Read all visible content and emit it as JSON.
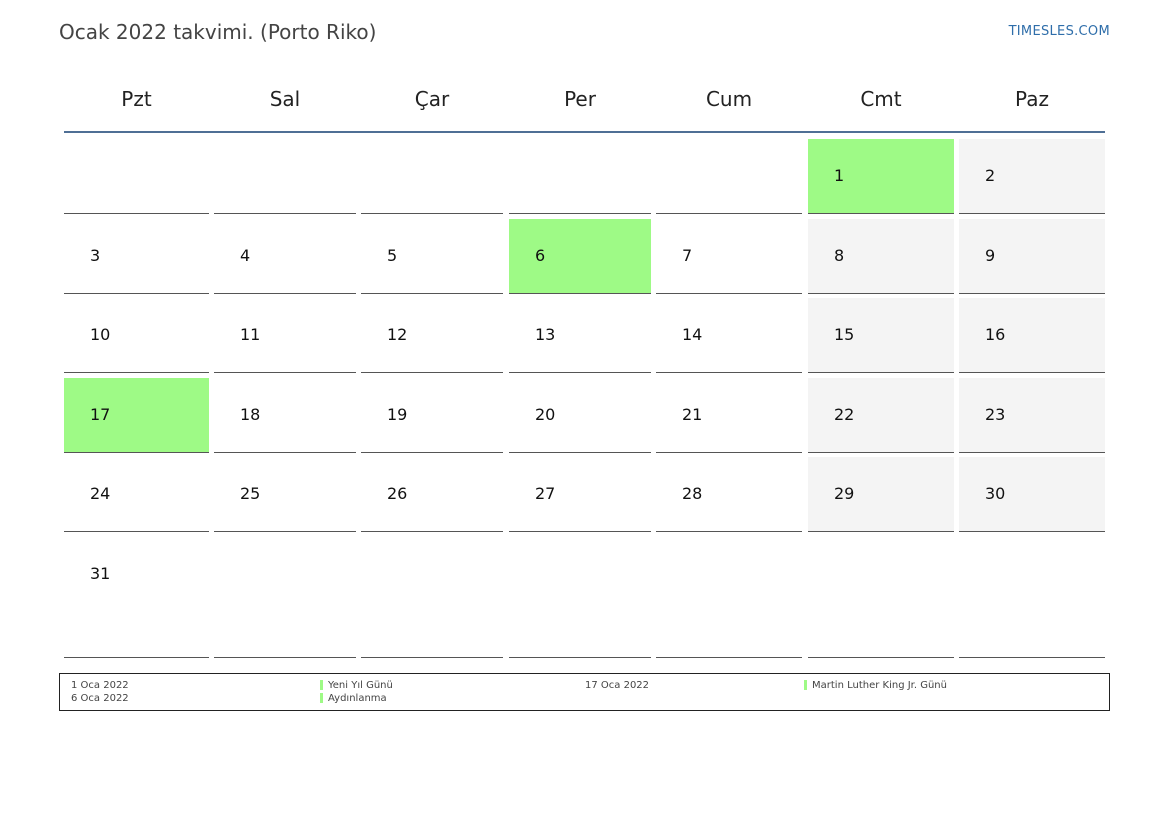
{
  "header": {
    "title": "Ocak 2022 takvimi. (Porto Riko)",
    "site": "TIMESLES.COM"
  },
  "weekdays": [
    "Pzt",
    "Sal",
    "Çar",
    "Per",
    "Cum",
    "Cmt",
    "Paz"
  ],
  "weeks": [
    [
      "",
      "",
      "",
      "",
      "",
      "1",
      "2"
    ],
    [
      "3",
      "4",
      "5",
      "6",
      "7",
      "8",
      "9"
    ],
    [
      "10",
      "11",
      "12",
      "13",
      "14",
      "15",
      "16"
    ],
    [
      "17",
      "18",
      "19",
      "20",
      "21",
      "22",
      "23"
    ],
    [
      "24",
      "25",
      "26",
      "27",
      "28",
      "29",
      "30"
    ],
    [
      "31",
      "",
      "",
      "",
      "",
      "",
      ""
    ]
  ],
  "holiday_days": [
    "1",
    "6",
    "17"
  ],
  "colors": {
    "holiday": "#9efa86",
    "weekend": "#f4f4f4",
    "accent": "#4f6f95"
  },
  "legend": [
    {
      "date": "1 Oca 2022",
      "name": "Yeni Yıl Günü"
    },
    {
      "date": "6 Oca 2022",
      "name": "Aydınlanma"
    },
    {
      "date": "17 Oca 2022",
      "name": "Martin Luther King Jr. Günü"
    }
  ]
}
